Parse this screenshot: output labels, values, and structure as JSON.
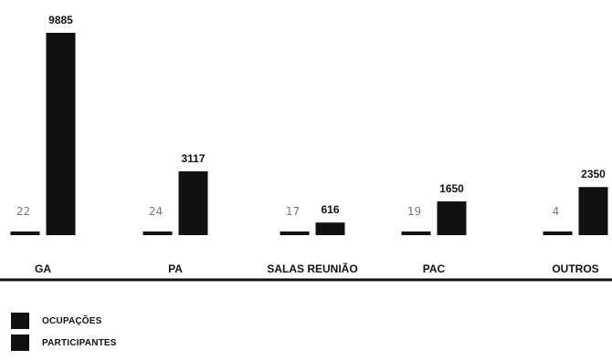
{
  "chart_data": {
    "type": "bar",
    "categories": [
      "GA",
      "PA",
      "SALAS REUNIÃO",
      "PAC",
      "OUTROS"
    ],
    "series": [
      {
        "name": "OCUPAÇÕES",
        "values": [
          22,
          24,
          17,
          19,
          4
        ],
        "color": "#111111"
      },
      {
        "name": "PARTICIPANTES",
        "values": [
          9885,
          3117,
          616,
          1650,
          2350
        ],
        "color": "#111111"
      }
    ],
    "title": "",
    "xlabel": "",
    "ylabel": "",
    "ylim": [
      0,
      9885
    ],
    "grid": false,
    "legend_position": "bottom-left"
  }
}
